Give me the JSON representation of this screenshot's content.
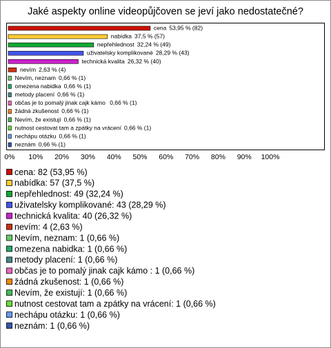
{
  "chart_data": {
    "type": "barh",
    "title": "Jaké aspekty online videopůjčoven se jeví jako nedostatečné?",
    "categories": [
      "cena",
      "nabídka",
      "nepřehlednost",
      "uživatelsky komplikované",
      "technická kvalita",
      "nevím",
      "Nevím, neznam",
      "omezena nabidka",
      "metody placení",
      "občas je to pomalý jinak cajk kámo ",
      "žádná zkušenost",
      "Nevím, že existují",
      "nutnost cestovat tam a zpátky na vrácení",
      "nechápu otázku",
      "neznám"
    ],
    "values": [
      53.95,
      37.5,
      32.24,
      28.29,
      26.32,
      2.63,
      0.66,
      0.66,
      0.66,
      0.66,
      0.66,
      0.66,
      0.66,
      0.66,
      0.66
    ],
    "value_labels": [
      "53,95 % (82)",
      "37,5 % (57)",
      "32,24 % (49)",
      "28,29 % (43)",
      "26,32 % (40)",
      "2,63 % (4)",
      "0,66 % (1)",
      "0,66 % (1)",
      "0,66 % (1)",
      "0,66 % (1)",
      "0,66 % (1)",
      "0,66 % (1)",
      "0,66 % (1)",
      "0,66 % (1)",
      "0,66 % (1)"
    ],
    "colors": [
      "#cc1100",
      "#ffcc33",
      "#11aa33",
      "#4455ee",
      "#cc22cc",
      "#cc3311",
      "#66cc66",
      "#22aa66",
      "#448888",
      "#ee66bb",
      "#ee8811",
      "#44bb55",
      "#66dd33",
      "#6699ee",
      "#3355aa"
    ],
    "legend": [
      "cena: 82 (53,95 %)",
      "nabídka: 57 (37,5 %)",
      "nepřehlednost: 49 (32,24 %)",
      "uživatelsky komplikované: 43 (28,29 %)",
      "technická kvalita: 40 (26,32 %)",
      "nevím: 4 (2,63 %)",
      "Nevím, neznam: 1 (0,66 %)",
      "omezena nabidka: 1 (0,66 %)",
      "metody placení: 1 (0,66 %)",
      "občas je to pomalý jinak cajk kámo : 1 (0,66 %)",
      "žádná zkušenost: 1 (0,66 %)",
      "Nevím, že existují: 1 (0,66 %)",
      "nutnost cestovat tam a zpátky na vrácení: 1 (0,66 %)",
      "nechápu otázku: 1 (0,66 %)",
      "neznám: 1 (0,66 %)"
    ],
    "xlim": [
      0,
      100
    ],
    "xticks": [
      {
        "value": 0,
        "label": "0%"
      },
      {
        "value": 10,
        "label": "10%"
      },
      {
        "value": 20,
        "label": "20%"
      },
      {
        "value": 30,
        "label": "30%"
      },
      {
        "value": 40,
        "label": "40%"
      },
      {
        "value": 50,
        "label": "50%"
      },
      {
        "value": 60,
        "label": "60%"
      },
      {
        "value": 70,
        "label": "70%"
      },
      {
        "value": 80,
        "label": "80%"
      },
      {
        "value": 90,
        "label": "90%"
      },
      {
        "value": 100,
        "label": "100%"
      }
    ]
  }
}
